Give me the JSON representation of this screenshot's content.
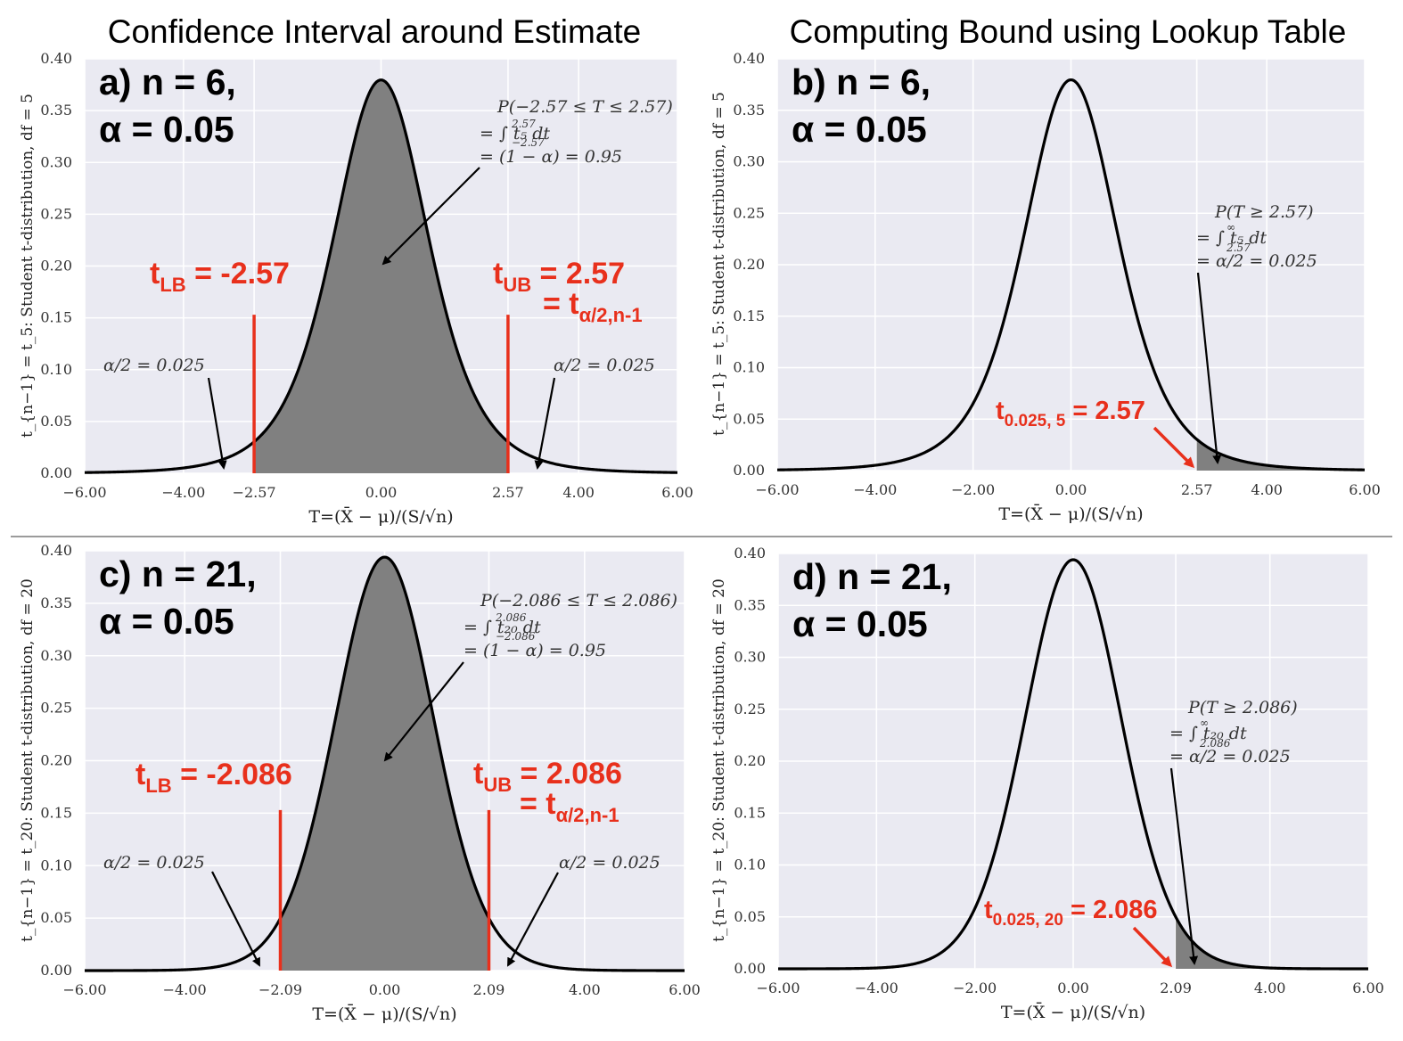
{
  "column_titles": [
    "Confidence Interval around Estimate",
    "Computing Bound using Lookup Table"
  ],
  "colors": {
    "plot_bg": "#eaeaf2",
    "grid": "#ffffff",
    "shade": "#808080",
    "curve": "#000000",
    "accent": "#e8301c",
    "annotation": "#333333"
  },
  "chart_data": [
    {
      "id": "a",
      "type": "area",
      "distribution": "student-t",
      "df": 5,
      "shade": "central",
      "bound": 2.57,
      "xlim": [
        -6,
        6
      ],
      "ylim": [
        0,
        0.4
      ],
      "xticks": [
        -6,
        -4,
        -2.57,
        0,
        2.57,
        4,
        6
      ],
      "xtick_labels": [
        "−6.00",
        "−4.00",
        "−2.57",
        "0.00",
        "2.57",
        "4.00",
        "6.00"
      ],
      "yticks": [
        0,
        0.05,
        0.1,
        0.15,
        0.2,
        0.25,
        0.3,
        0.35,
        0.4
      ],
      "ytick_labels": [
        "0.00",
        "0.05",
        "0.10",
        "0.15",
        "0.20",
        "0.25",
        "0.30",
        "0.35",
        "0.40"
      ],
      "xlabel": "T=(X̄ − μ)/(S/√n)",
      "ylabel": "t_{n−1} = t_5: Student t-distribution, df = 5",
      "panel_label": [
        "a) n = 6,",
        "α = 0.05"
      ],
      "red_lines": [
        -2.57,
        2.57
      ],
      "red_lines_top": 0.153,
      "lb_label": {
        "main": "t",
        "sub": "LB",
        "rest": " = -2.57"
      },
      "ub_label": {
        "main": "t",
        "sub": "UB",
        "rest": " = 2.57"
      },
      "ub_label2": {
        "main": "= t",
        "sub": "α/2,n-1"
      },
      "prob_text": [
        "P(−2.57 ≤ T ≤ 2.57)",
        "= ∫ t₅ dt",
        "= (1 − α) = 0.95"
      ],
      "integral_limits": {
        "upper": "2.57",
        "lower": "−2.57"
      },
      "tail_left_text": "α/2 = 0.025",
      "tail_right_text": "α/2 = 0.025"
    },
    {
      "id": "b",
      "type": "area",
      "distribution": "student-t",
      "df": 5,
      "shade": "right-tail",
      "bound": 2.57,
      "xlim": [
        -6,
        6
      ],
      "ylim": [
        0,
        0.4
      ],
      "xticks": [
        -6,
        -4,
        -2,
        0,
        2.57,
        4,
        6
      ],
      "xtick_labels": [
        "−6.00",
        "−4.00",
        "−2.00",
        "0.00",
        "2.57",
        "4.00",
        "6.00"
      ],
      "yticks": [
        0,
        0.05,
        0.1,
        0.15,
        0.2,
        0.25,
        0.3,
        0.35,
        0.4
      ],
      "ytick_labels": [
        "0.00",
        "0.05",
        "0.10",
        "0.15",
        "0.20",
        "0.25",
        "0.30",
        "0.35",
        "0.40"
      ],
      "xlabel": "T=(X̄ − μ)/(S/√n)",
      "ylabel": "t_{n−1} = t_5: Student t-distribution, df = 5",
      "panel_label": [
        "b) n = 6,",
        "α = 0.05"
      ],
      "crit_label": {
        "main": "t",
        "sub": "0.025, 5",
        "rest": " = 2.57"
      },
      "prob_text": [
        "P(T ≥ 2.57)",
        "= ∫ t₅ dt",
        "= α/2 = 0.025"
      ],
      "integral_limits": {
        "upper": "∞",
        "lower": "2.57"
      }
    },
    {
      "id": "c",
      "type": "area",
      "distribution": "student-t",
      "df": 20,
      "shade": "central",
      "bound": 2.086,
      "xlim": [
        -6,
        6
      ],
      "ylim": [
        0,
        0.4
      ],
      "xticks": [
        -6,
        -4,
        -2.086,
        0,
        2.086,
        4,
        6
      ],
      "xtick_labels": [
        "−6.00",
        "−4.00",
        "−2.09",
        "0.00",
        "2.09",
        "4.00",
        "6.00"
      ],
      "yticks": [
        0,
        0.05,
        0.1,
        0.15,
        0.2,
        0.25,
        0.3,
        0.35,
        0.4
      ],
      "ytick_labels": [
        "0.00",
        "0.05",
        "0.10",
        "0.15",
        "0.20",
        "0.25",
        "0.30",
        "0.35",
        "0.40"
      ],
      "xlabel": "T=(X̄ − μ)/(S/√n)",
      "ylabel": "t_{n−1} = t_20: Student t-distribution, df = 20",
      "panel_label": [
        "c) n = 21,",
        "α = 0.05"
      ],
      "red_lines": [
        -2.086,
        2.086
      ],
      "red_lines_top": 0.153,
      "lb_label": {
        "main": "t",
        "sub": "LB",
        "rest": " = -2.086"
      },
      "ub_label": {
        "main": "t",
        "sub": "UB",
        "rest": " = 2.086"
      },
      "ub_label2": {
        "main": "= t",
        "sub": "α/2,n-1"
      },
      "prob_text": [
        "P(−2.086 ≤ T ≤ 2.086)",
        "= ∫ t₂₀ dt",
        "= (1 − α) = 0.95"
      ],
      "integral_limits": {
        "upper": "2.086",
        "lower": "−2.086"
      },
      "tail_left_text": "α/2 = 0.025",
      "tail_right_text": "α/2 = 0.025"
    },
    {
      "id": "d",
      "type": "area",
      "distribution": "student-t",
      "df": 20,
      "shade": "right-tail",
      "bound": 2.086,
      "xlim": [
        -6,
        6
      ],
      "ylim": [
        0,
        0.4
      ],
      "xticks": [
        -6,
        -4,
        -2,
        0,
        2.086,
        4,
        6
      ],
      "xtick_labels": [
        "−6.00",
        "−4.00",
        "−2.00",
        "0.00",
        "2.09",
        "4.00",
        "6.00"
      ],
      "yticks": [
        0,
        0.05,
        0.1,
        0.15,
        0.2,
        0.25,
        0.3,
        0.35,
        0.4
      ],
      "ytick_labels": [
        "0.00",
        "0.05",
        "0.10",
        "0.15",
        "0.20",
        "0.25",
        "0.30",
        "0.35",
        "0.40"
      ],
      "xlabel": "T=(X̄ − μ)/(S/√n)",
      "ylabel": "t_{n−1} = t_20: Student t-distribution, df = 20",
      "panel_label": [
        "d) n = 21,",
        "α = 0.05"
      ],
      "crit_label": {
        "main": "t",
        "sub": "0.025, 20",
        "rest": " = 2.086"
      },
      "prob_text": [
        "P(T ≥ 2.086)",
        "= ∫ t₂₀ dt",
        "= α/2 = 0.025"
      ],
      "integral_limits": {
        "upper": "∞",
        "lower": "2.086"
      }
    }
  ]
}
